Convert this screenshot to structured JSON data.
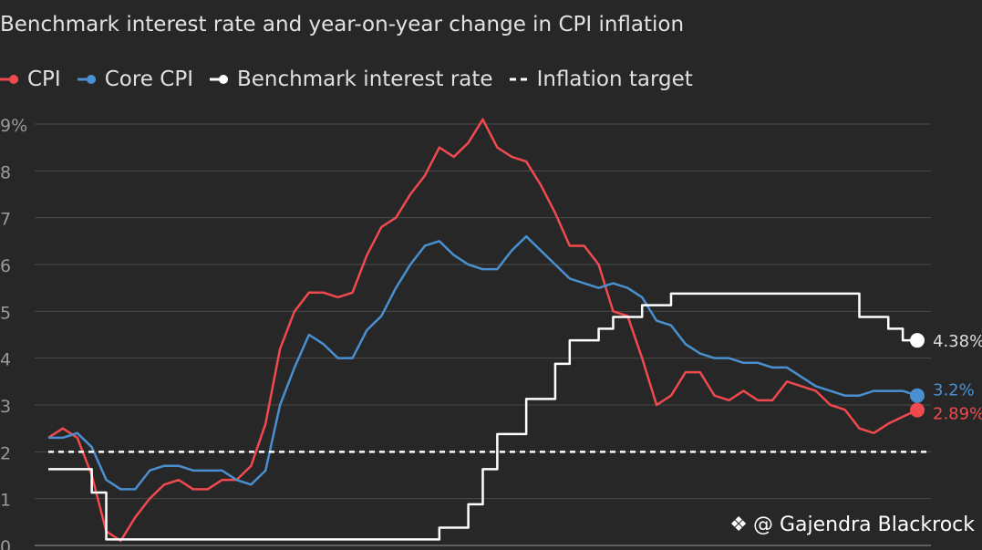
{
  "chart_data": {
    "type": "line",
    "title": "Benchmark interest rate and year-on-year change in CPI inflation",
    "ylim": [
      0,
      9
    ],
    "y_ticks": [
      "0",
      "1",
      "2",
      "3",
      "4",
      "5",
      "6",
      "7",
      "8",
      "9%"
    ],
    "y_tick_values": [
      0,
      1,
      2,
      3,
      4,
      5,
      6,
      7,
      8,
      9
    ],
    "grid": true,
    "x_count": 61,
    "series": [
      {
        "name": "CPI",
        "color": "#f04a4f",
        "end_label": "2.89%",
        "values": [
          2.3,
          2.5,
          2.3,
          1.5,
          0.3,
          0.1,
          0.6,
          1.0,
          1.3,
          1.4,
          1.2,
          1.2,
          1.4,
          1.4,
          1.7,
          2.6,
          4.2,
          5.0,
          5.4,
          5.4,
          5.3,
          5.4,
          6.2,
          6.8,
          7.0,
          7.5,
          7.9,
          8.5,
          8.3,
          8.6,
          9.1,
          8.5,
          8.3,
          8.2,
          7.7,
          7.1,
          6.4,
          6.4,
          6.0,
          5.0,
          4.9,
          4.0,
          3.0,
          3.2,
          3.7,
          3.7,
          3.2,
          3.1,
          3.3,
          3.1,
          3.1,
          3.5,
          3.4,
          3.3,
          3.0,
          2.9,
          2.5,
          2.4,
          2.6,
          2.75,
          2.89
        ]
      },
      {
        "name": "Core CPI",
        "color": "#4a90d0",
        "end_label": "3.2%",
        "values": [
          2.3,
          2.3,
          2.4,
          2.1,
          1.4,
          1.2,
          1.2,
          1.6,
          1.7,
          1.7,
          1.6,
          1.6,
          1.6,
          1.4,
          1.3,
          1.6,
          3.0,
          3.8,
          4.5,
          4.3,
          4.0,
          4.0,
          4.6,
          4.9,
          5.5,
          6.0,
          6.4,
          6.5,
          6.2,
          6.0,
          5.9,
          5.9,
          6.3,
          6.6,
          6.3,
          6.0,
          5.7,
          5.6,
          5.5,
          5.6,
          5.5,
          5.3,
          4.8,
          4.7,
          4.3,
          4.1,
          4.0,
          4.0,
          3.9,
          3.9,
          3.8,
          3.8,
          3.6,
          3.4,
          3.3,
          3.2,
          3.2,
          3.3,
          3.3,
          3.3,
          3.2
        ]
      },
      {
        "name": "Benchmark interest rate",
        "color": "#ffffff",
        "end_label": "4.38%",
        "step": true,
        "values": [
          1.63,
          1.63,
          1.63,
          1.13,
          0.13,
          0.13,
          0.13,
          0.13,
          0.13,
          0.13,
          0.13,
          0.13,
          0.13,
          0.13,
          0.13,
          0.13,
          0.13,
          0.13,
          0.13,
          0.13,
          0.13,
          0.13,
          0.13,
          0.13,
          0.13,
          0.13,
          0.13,
          0.38,
          0.38,
          0.88,
          1.63,
          2.38,
          2.38,
          3.13,
          3.13,
          3.88,
          4.38,
          4.38,
          4.63,
          4.88,
          4.88,
          5.13,
          5.13,
          5.38,
          5.38,
          5.38,
          5.38,
          5.38,
          5.38,
          5.38,
          5.38,
          5.38,
          5.38,
          5.38,
          5.38,
          5.38,
          4.88,
          4.88,
          4.63,
          4.38,
          4.38
        ]
      },
      {
        "name": "Inflation target",
        "color": "#ffffff",
        "dashed": true,
        "values": [
          2.0,
          2.0
        ]
      }
    ]
  },
  "legend": {
    "cpi": "CPI",
    "core": "Core CPI",
    "rate": "Benchmark interest rate",
    "target": "Inflation target"
  },
  "credit": {
    "text": "@ Gajendra Blackrock",
    "icon": "binance-diamond-icon"
  }
}
